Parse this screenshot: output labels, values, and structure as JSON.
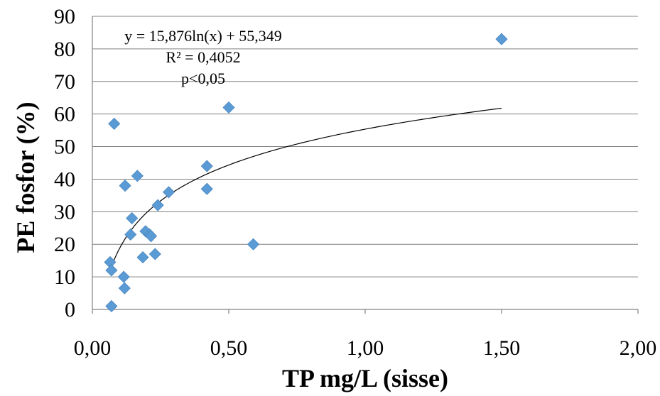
{
  "chart_data": {
    "type": "scatter",
    "title": "",
    "xlabel": "TP mg/L (sisse)",
    "ylabel": "PE fosfor (%)",
    "xlim": [
      0,
      2
    ],
    "ylim": [
      0,
      90
    ],
    "x_ticks": [
      "0,00",
      "0,50",
      "1,00",
      "1,50",
      "2,00"
    ],
    "y_ticks": [
      "0",
      "10",
      "20",
      "30",
      "40",
      "50",
      "60",
      "70",
      "80",
      "90"
    ],
    "grid": true,
    "series": [
      {
        "points": [
          {
            "x": 0.07,
            "y": 1
          },
          {
            "x": 0.065,
            "y": 14.5
          },
          {
            "x": 0.07,
            "y": 12
          },
          {
            "x": 0.08,
            "y": 57
          },
          {
            "x": 0.115,
            "y": 10
          },
          {
            "x": 0.118,
            "y": 6.5
          },
          {
            "x": 0.12,
            "y": 38
          },
          {
            "x": 0.14,
            "y": 23
          },
          {
            "x": 0.145,
            "y": 28
          },
          {
            "x": 0.165,
            "y": 41
          },
          {
            "x": 0.185,
            "y": 16
          },
          {
            "x": 0.195,
            "y": 24
          },
          {
            "x": 0.21,
            "y": 23
          },
          {
            "x": 0.215,
            "y": 22.5
          },
          {
            "x": 0.23,
            "y": 17
          },
          {
            "x": 0.24,
            "y": 32
          },
          {
            "x": 0.28,
            "y": 36
          },
          {
            "x": 0.42,
            "y": 44
          },
          {
            "x": 0.42,
            "y": 37
          },
          {
            "x": 0.5,
            "y": 62
          },
          {
            "x": 0.59,
            "y": 20
          },
          {
            "x": 1.5,
            "y": 83
          }
        ]
      }
    ],
    "trendline": {
      "type": "logarithmic",
      "a": 15.876,
      "b": 55.349,
      "x_range": [
        0.07,
        1.5
      ]
    },
    "annotations": {
      "equation": "y = 15,876ln(x) + 55,349",
      "r2": "R² = 0,4052",
      "p": "p<0,05"
    }
  }
}
